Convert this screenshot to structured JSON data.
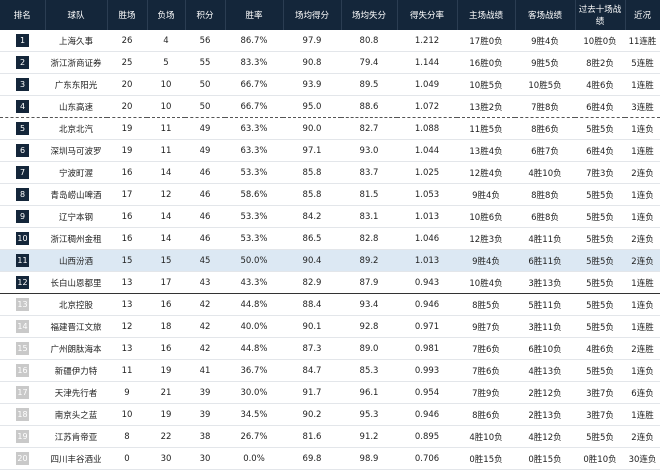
{
  "table": {
    "columns": [
      "排名",
      "球队",
      "胜场",
      "负场",
      "积分",
      "胜率",
      "场均得分",
      "场均失分",
      "得失分率",
      "主场战绩",
      "客场战绩",
      "过去十场战绩",
      "近况"
    ],
    "rows": [
      [
        "1",
        "上海久事",
        "26",
        "4",
        "56",
        "86.7%",
        "97.9",
        "80.8",
        "1.212",
        "17胜0负",
        "9胜4负",
        "10胜0负",
        "11连胜"
      ],
      [
        "2",
        "浙江浙商证券",
        "25",
        "5",
        "55",
        "83.3%",
        "90.8",
        "79.4",
        "1.144",
        "16胜0负",
        "9胜5负",
        "8胜2负",
        "5连胜"
      ],
      [
        "3",
        "广东东阳光",
        "20",
        "10",
        "50",
        "66.7%",
        "93.9",
        "89.5",
        "1.049",
        "10胜5负",
        "10胜5负",
        "4胜6负",
        "1连胜"
      ],
      [
        "4",
        "山东高速",
        "20",
        "10",
        "50",
        "66.7%",
        "95.0",
        "88.6",
        "1.072",
        "13胜2负",
        "7胜8负",
        "6胜4负",
        "3连胜"
      ],
      [
        "5",
        "北京北汽",
        "19",
        "11",
        "49",
        "63.3%",
        "90.0",
        "82.7",
        "1.088",
        "11胜5负",
        "8胜6负",
        "5胜5负",
        "1连负"
      ],
      [
        "6",
        "深圳马可波罗",
        "19",
        "11",
        "49",
        "63.3%",
        "97.1",
        "93.0",
        "1.044",
        "13胜4负",
        "6胜7负",
        "6胜4负",
        "1连胜"
      ],
      [
        "7",
        "宁波町渥",
        "16",
        "14",
        "46",
        "53.3%",
        "85.8",
        "83.7",
        "1.025",
        "12胜4负",
        "4胜10负",
        "7胜3负",
        "2连负"
      ],
      [
        "8",
        "青岛崂山啤酒",
        "17",
        "12",
        "46",
        "58.6%",
        "85.8",
        "81.5",
        "1.053",
        "9胜4负",
        "8胜8负",
        "5胜5负",
        "1连负"
      ],
      [
        "9",
        "辽宁本钢",
        "16",
        "14",
        "46",
        "53.3%",
        "84.2",
        "83.1",
        "1.013",
        "10胜6负",
        "6胜8负",
        "5胜5负",
        "1连负"
      ],
      [
        "10",
        "浙江稠州金租",
        "16",
        "14",
        "46",
        "53.3%",
        "86.5",
        "82.8",
        "1.046",
        "12胜3负",
        "4胜11负",
        "5胜5负",
        "2连负"
      ],
      [
        "11",
        "山西汾酒",
        "15",
        "15",
        "45",
        "50.0%",
        "90.4",
        "89.2",
        "1.013",
        "9胜4负",
        "6胜11负",
        "5胜5负",
        "2连负"
      ],
      [
        "12",
        "长白山恩都里",
        "13",
        "17",
        "43",
        "43.3%",
        "82.9",
        "87.9",
        "0.943",
        "10胜4负",
        "3胜13负",
        "5胜5负",
        "1连胜"
      ],
      [
        "13",
        "北京控股",
        "13",
        "16",
        "42",
        "44.8%",
        "88.4",
        "93.4",
        "0.946",
        "8胜5负",
        "5胜11负",
        "5胜5负",
        "1连负"
      ],
      [
        "14",
        "福建晋江文旅",
        "12",
        "18",
        "42",
        "40.0%",
        "90.1",
        "92.8",
        "0.971",
        "9胜7负",
        "3胜11负",
        "5胜5负",
        "1连胜"
      ],
      [
        "15",
        "广州朗肽海本",
        "13",
        "16",
        "42",
        "44.8%",
        "87.3",
        "89.0",
        "0.981",
        "7胜6负",
        "6胜10负",
        "4胜6负",
        "2连胜"
      ],
      [
        "16",
        "新疆伊力特",
        "11",
        "19",
        "41",
        "36.7%",
        "84.7",
        "85.3",
        "0.993",
        "7胜6负",
        "4胜13负",
        "5胜5负",
        "1连负"
      ],
      [
        "17",
        "天津先行者",
        "9",
        "21",
        "39",
        "30.0%",
        "91.7",
        "96.1",
        "0.954",
        "7胜9负",
        "2胜12负",
        "3胜7负",
        "6连负"
      ],
      [
        "18",
        "南京头之蓝",
        "10",
        "19",
        "39",
        "34.5%",
        "90.2",
        "95.3",
        "0.946",
        "8胜6负",
        "2胜13负",
        "3胜7负",
        "1连胜"
      ],
      [
        "19",
        "江苏肯帝亚",
        "8",
        "22",
        "38",
        "26.7%",
        "81.6",
        "91.2",
        "0.895",
        "4胜10负",
        "4胜12负",
        "5胜5负",
        "2连负"
      ],
      [
        "20",
        "四川丰谷酒业",
        "0",
        "30",
        "30",
        "0.0%",
        "69.8",
        "98.9",
        "0.706",
        "0胜15负",
        "0胜15负",
        "0胜10负",
        "30连负"
      ]
    ]
  }
}
